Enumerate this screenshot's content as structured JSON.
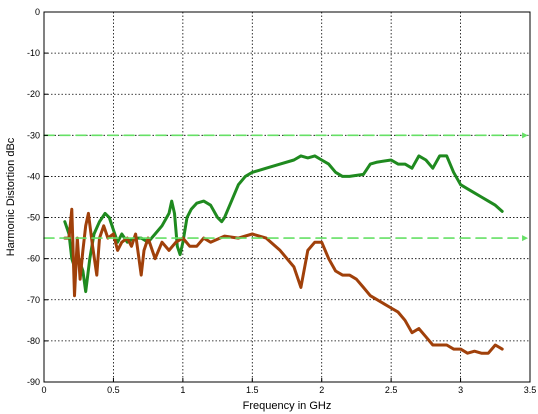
{
  "chart_data": {
    "type": "line",
    "title": "",
    "xlabel": "Frequency in GHz",
    "ylabel": "Harmonic Distortion dBc",
    "xlim": [
      0,
      3.5
    ],
    "ylim": [
      -90,
      0
    ],
    "xticks": [
      0,
      0.5,
      1,
      1.5,
      2,
      2.5,
      3,
      3.5
    ],
    "xtick_labels": [
      "0",
      "0.5",
      "1",
      "1.5",
      "2",
      "2.5",
      "3",
      "3.5"
    ],
    "yticks": [
      0,
      -10,
      -20,
      -30,
      -40,
      -50,
      -60,
      -70,
      -80,
      -90
    ],
    "ytick_labels": [
      "0",
      "-10",
      "-20",
      "-30",
      "-40",
      "-50",
      "-60",
      "-70",
      "-80",
      "-90"
    ],
    "grid": true,
    "series": [
      {
        "color": "#1f8a1f",
        "style": "solid",
        "x": [
          0.15,
          0.18,
          0.2,
          0.22,
          0.25,
          0.28,
          0.3,
          0.33,
          0.36,
          0.4,
          0.44,
          0.47,
          0.5,
          0.53,
          0.56,
          0.6,
          0.65,
          0.7,
          0.75,
          0.8,
          0.85,
          0.9,
          0.92,
          0.94,
          0.96,
          0.98,
          1.0,
          1.03,
          1.06,
          1.1,
          1.15,
          1.2,
          1.25,
          1.28,
          1.3,
          1.35,
          1.4,
          1.45,
          1.5,
          1.55,
          1.6,
          1.7,
          1.8,
          1.85,
          1.9,
          1.95,
          2.0,
          2.05,
          2.1,
          2.15,
          2.2,
          2.3,
          2.35,
          2.4,
          2.5,
          2.55,
          2.6,
          2.65,
          2.7,
          2.75,
          2.8,
          2.85,
          2.9,
          2.95,
          3.0,
          3.05,
          3.1,
          3.15,
          3.2,
          3.25,
          3.3
        ],
        "y": [
          -51,
          -54,
          -60,
          -62,
          -60,
          -63,
          -68,
          -60,
          -54,
          -51,
          -49,
          -50,
          -53,
          -56,
          -54,
          -56,
          -55,
          -55,
          -56,
          -54,
          -52,
          -49,
          -46,
          -49,
          -57,
          -59,
          -56,
          -50,
          -48,
          -46.5,
          -46,
          -47,
          -50,
          -51,
          -50,
          -46,
          -42,
          -40,
          -39,
          -38.5,
          -38,
          -37,
          -36,
          -35,
          -35.5,
          -35,
          -36,
          -37,
          -39,
          -40,
          -40,
          -39.5,
          -37,
          -36.5,
          -36,
          -37,
          -37,
          -38,
          -35,
          -36,
          -38,
          -35,
          -35,
          -39,
          -42,
          -43,
          -44,
          -45,
          -46,
          -47,
          -48.5
        ]
      },
      {
        "color": "#a0400a",
        "style": "solid",
        "x": [
          0.15,
          0.18,
          0.2,
          0.22,
          0.24,
          0.26,
          0.28,
          0.3,
          0.32,
          0.35,
          0.38,
          0.4,
          0.43,
          0.46,
          0.5,
          0.53,
          0.56,
          0.6,
          0.63,
          0.66,
          0.7,
          0.72,
          0.75,
          0.8,
          0.85,
          0.9,
          0.95,
          1.0,
          1.05,
          1.1,
          1.15,
          1.2,
          1.3,
          1.4,
          1.5,
          1.6,
          1.7,
          1.75,
          1.8,
          1.85,
          1.9,
          1.95,
          2.0,
          2.05,
          2.1,
          2.15,
          2.2,
          2.25,
          2.3,
          2.35,
          2.4,
          2.45,
          2.5,
          2.55,
          2.6,
          2.65,
          2.7,
          2.75,
          2.8,
          2.85,
          2.9,
          2.95,
          3.0,
          3.05,
          3.1,
          3.15,
          3.2,
          3.25,
          3.3
        ],
        "y": [
          -55,
          -55,
          -48,
          -69,
          -55,
          -65,
          -58,
          -52,
          -49,
          -57,
          -64,
          -55,
          -52,
          -55,
          -54,
          -58,
          -56,
          -55,
          -57,
          -54,
          -64,
          -58,
          -55,
          -60,
          -56,
          -58,
          -56,
          -55,
          -57,
          -57,
          -55,
          -56,
          -54.5,
          -55,
          -54,
          -55,
          -58,
          -60,
          -62,
          -67,
          -58,
          -56,
          -56,
          -60,
          -63,
          -64,
          -64,
          -65,
          -67,
          -69,
          -70,
          -71,
          -72,
          -73,
          -75,
          -78,
          -77,
          -79,
          -81,
          -81,
          -81,
          -82,
          -82,
          -83,
          -82.5,
          -83,
          -83,
          -81,
          -82
        ]
      },
      {
        "color": "#66e066",
        "style": "dashed",
        "x": [
          0,
          3.45
        ],
        "y": [
          -30,
          -30
        ],
        "arrow": true
      },
      {
        "color": "#66e066",
        "style": "dashed",
        "x": [
          0,
          3.45
        ],
        "y": [
          -55,
          -55
        ],
        "arrow": true
      }
    ]
  }
}
